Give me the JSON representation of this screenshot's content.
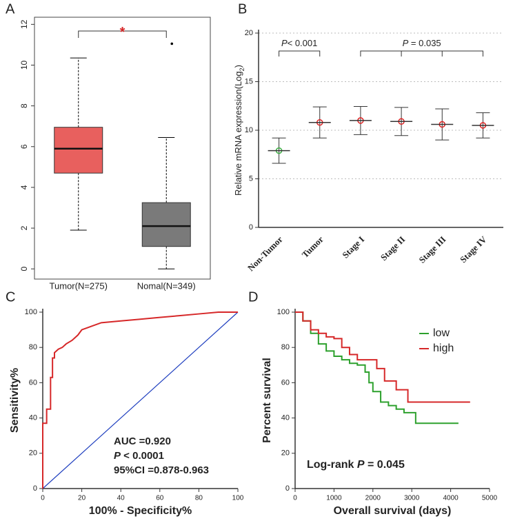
{
  "chart_data": [
    {
      "type": "box",
      "label": "A",
      "categories": [
        "Tumor(N=275)",
        "Nomal(N=349)"
      ],
      "boxes": [
        {
          "min": 1.9,
          "q1": 4.7,
          "median": 5.9,
          "q3": 6.95,
          "max": 10.35
        },
        {
          "min": 0,
          "q1": 1.1,
          "median": 2.1,
          "q3": 3.25,
          "max": 6.45,
          "outliers": [
            11.05
          ]
        }
      ],
      "colors": [
        "#e8605e",
        "#7a7a7a"
      ],
      "ylim": [
        -0.5,
        12.35
      ],
      "yticks": [
        0,
        2,
        4,
        6,
        8,
        10,
        12
      ],
      "annotations": [
        {
          "parts": [
            {
              "text": "*"
            }
          ]
        }
      ]
    },
    {
      "type": "dot",
      "label": "B",
      "categories": [
        "Non-Tumor",
        "Tumor",
        "Stage I",
        "Stage II",
        "Stage III",
        "Stage IV"
      ],
      "values": [
        7.9,
        10.8,
        11.0,
        10.9,
        10.6,
        10.5
      ],
      "errors": [
        1.3,
        1.6,
        1.45,
        1.45,
        1.6,
        1.3
      ],
      "colors": [
        "#3cb043",
        "#e02020",
        "#e02020",
        "#e02020",
        "#e02020",
        "#e02020"
      ],
      "ylabel": [
        "Relative mRNA expression(Log",
        "2",
        ")"
      ],
      "ylim": [
        0,
        20
      ],
      "yticks": [
        0,
        5,
        10,
        15,
        20
      ],
      "grid": true,
      "annotations": [
        {
          "parts": [
            {
              "text": "P",
              "italic": true
            },
            {
              "text": "< 0.001"
            }
          ]
        },
        {
          "parts": [
            {
              "text": "P",
              "italic": true
            },
            {
              "text": " = 0.035"
            }
          ]
        }
      ]
    },
    {
      "type": "line",
      "label": "C",
      "x": [
        0,
        0,
        2,
        2,
        4,
        4,
        5,
        5,
        6,
        6,
        8,
        10,
        12,
        15,
        18,
        20,
        25,
        30,
        40,
        50,
        60,
        70,
        80,
        90,
        100
      ],
      "series": [
        {
          "color": "#d62728",
          "values": [
            0,
            37,
            37,
            45,
            45,
            63,
            63,
            74,
            74,
            77,
            79,
            80,
            82,
            84,
            87,
            90,
            92,
            94,
            95,
            96,
            97,
            98,
            99,
            100,
            100
          ]
        }
      ],
      "reference_color": "#1f3fbf",
      "xlabel": "100% - Specificity%",
      "ylabel": "Sensitivity%",
      "xlim": [
        0,
        100
      ],
      "ylim": [
        0,
        100
      ],
      "xticks": [
        0,
        20,
        40,
        60,
        80,
        100
      ],
      "yticks": [
        0,
        20,
        40,
        60,
        80,
        100
      ],
      "annotations": [
        {
          "parts": [
            {
              "text": "AUC =0.920"
            }
          ]
        },
        {
          "parts": [
            {
              "text": "P",
              "italic": true
            },
            {
              "text": " < 0.0001"
            }
          ]
        },
        {
          "parts": [
            {
              "text": "95%CI =0.878-0.963"
            }
          ]
        }
      ]
    },
    {
      "type": "step",
      "label": "D",
      "series": [
        {
          "name": "low",
          "color": "#2ca02c",
          "x": [
            0,
            200,
            400,
            600,
            800,
            1000,
            1200,
            1400,
            1600,
            1800,
            1900,
            2000,
            2200,
            2400,
            2600,
            2800,
            3000,
            3100,
            4200
          ],
          "values": [
            100,
            95,
            88,
            82,
            78,
            75,
            73,
            71,
            70,
            66,
            60,
            55,
            49,
            47,
            45,
            43,
            43,
            37,
            37
          ]
        },
        {
          "name": "high",
          "color": "#d62728",
          "x": [
            0,
            200,
            400,
            600,
            800,
            1000,
            1200,
            1400,
            1600,
            2000,
            2100,
            2300,
            2600,
            2800,
            2900,
            4500
          ],
          "values": [
            100,
            95,
            90,
            88,
            86,
            85,
            80,
            76,
            73,
            73,
            68,
            61,
            56,
            56,
            49,
            49
          ]
        }
      ],
      "xlabel": "Overall survival (days)",
      "ylabel": "Percent survival",
      "xlim": [
        0,
        5000
      ],
      "ylim": [
        0,
        100
      ],
      "xticks": [
        0,
        1000,
        2000,
        3000,
        4000,
        5000
      ],
      "yticks": [
        0,
        20,
        40,
        60,
        80,
        100
      ],
      "legend": "upper right",
      "annotations": [
        {
          "parts": [
            {
              "text": "Log-rank "
            },
            {
              "text": "P",
              "italic": true
            },
            {
              "text": " = 0.045"
            }
          ]
        }
      ]
    }
  ]
}
